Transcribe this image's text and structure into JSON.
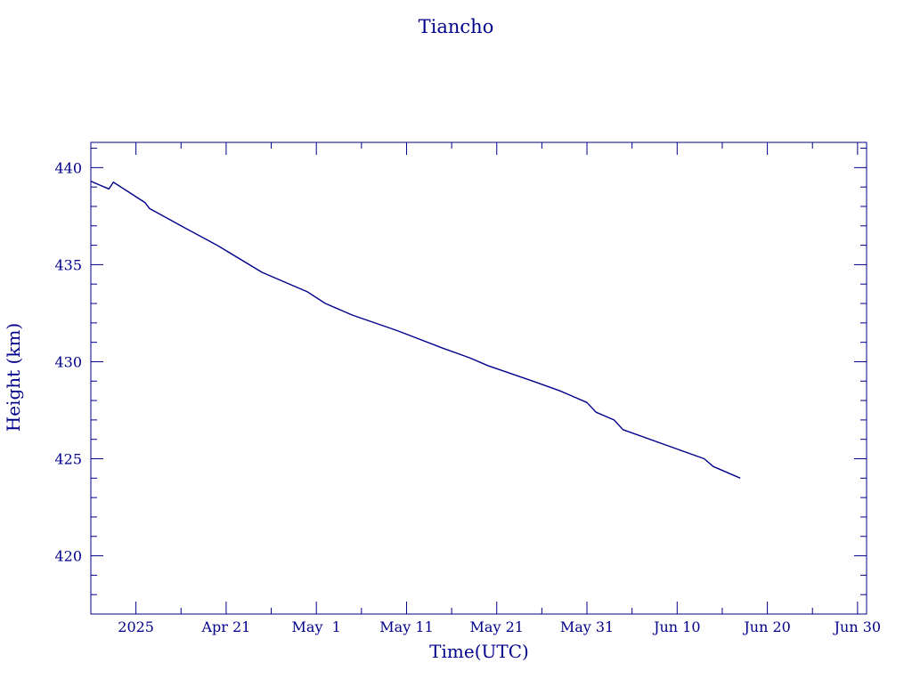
{
  "colors": {
    "ink": "#00008b",
    "background": "#ffffff"
  },
  "chart_data": {
    "type": "line",
    "title": "Tiancho",
    "xlabel": "Time(UTC)",
    "ylabel": "Height (km)",
    "x_axis": {
      "kind": "date",
      "range": [
        "2025-04-06",
        "2025-07-01"
      ],
      "major_ticks": [
        {
          "date": "2025-04-11",
          "label": "2025"
        },
        {
          "date": "2025-04-21",
          "label": "Apr 21"
        },
        {
          "date": "2025-05-01",
          "label": "May  1"
        },
        {
          "date": "2025-05-11",
          "label": "May 11"
        },
        {
          "date": "2025-05-21",
          "label": "May 21"
        },
        {
          "date": "2025-05-31",
          "label": "May 31"
        },
        {
          "date": "2025-06-10",
          "label": "Jun 10"
        },
        {
          "date": "2025-06-20",
          "label": "Jun 20"
        },
        {
          "date": "2025-06-30",
          "label": "Jun 30"
        }
      ]
    },
    "y_axis": {
      "range": [
        417,
        441.3
      ],
      "major_ticks": [
        420,
        425,
        430,
        435,
        440
      ],
      "minor_step": 1
    },
    "grid": false,
    "series": [
      {
        "x": [
          "2025-04-06",
          "2025-04-07",
          "2025-04-07T12:00",
          "2025-04-08",
          "2025-04-08T12:00",
          "2025-04-10",
          "2025-04-12",
          "2025-04-12T12:00",
          "2025-04-16",
          "2025-04-20",
          "2025-04-25",
          "2025-04-30",
          "2025-05-02",
          "2025-05-05",
          "2025-05-10",
          "2025-05-15",
          "2025-05-18",
          "2025-05-20",
          "2025-05-25",
          "2025-05-28",
          "2025-05-31",
          "2025-06-01",
          "2025-06-03",
          "2025-06-04",
          "2025-06-10",
          "2025-06-13",
          "2025-06-14",
          "2025-06-17"
        ],
        "y": [
          439.3,
          439.1,
          439.0,
          438.9,
          439.25,
          438.8,
          438.2,
          437.9,
          437.0,
          436.0,
          434.6,
          433.6,
          433.0,
          432.4,
          431.6,
          430.7,
          430.2,
          429.8,
          429.0,
          428.5,
          427.9,
          427.4,
          427.0,
          426.5,
          425.5,
          425.0,
          424.6,
          424.0
        ]
      }
    ]
  }
}
